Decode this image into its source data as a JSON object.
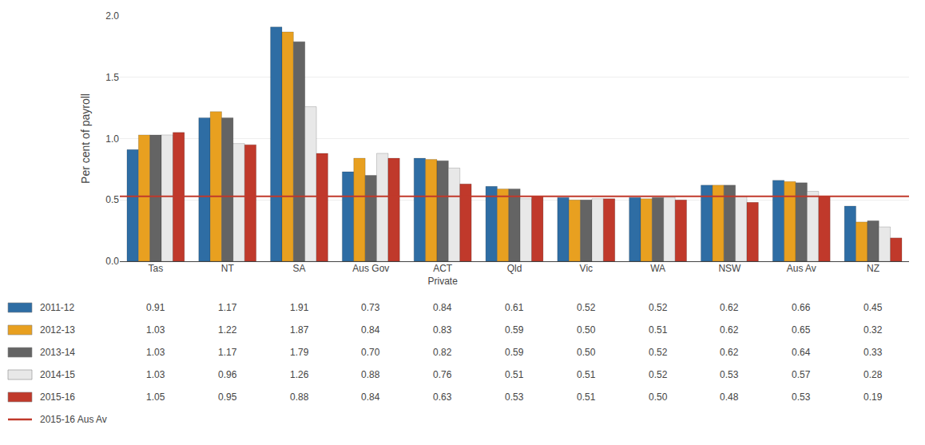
{
  "chart_data": {
    "type": "bar",
    "categories": [
      "Tas",
      "NT",
      "SA",
      "Aus Gov",
      "ACT\nPrivate",
      "Qld",
      "Vic",
      "WA",
      "NSW",
      "Aus Av",
      "NZ"
    ],
    "series": [
      {
        "name": "2011-12",
        "color": "#2E6DA4",
        "values": [
          0.91,
          1.17,
          1.91,
          0.73,
          0.84,
          0.61,
          0.52,
          0.52,
          0.62,
          0.66,
          0.45
        ],
        "value_labels": [
          "0.91",
          "1.17",
          "1.91",
          "0.73",
          "0.84",
          "0.61",
          "0.52",
          "0.52",
          "0.62",
          "0.66",
          "0.45"
        ]
      },
      {
        "name": "2012-13",
        "color": "#E8A020",
        "values": [
          1.03,
          1.22,
          1.87,
          0.84,
          0.83,
          0.59,
          0.5,
          0.51,
          0.62,
          0.65,
          0.32
        ],
        "value_labels": [
          "1.03",
          "1.22",
          "1.87",
          "0.84",
          "0.83",
          "0.59",
          "0.50",
          "0.51",
          "0.62",
          "0.65",
          "0.32"
        ]
      },
      {
        "name": "2013-14",
        "color": "#646464",
        "values": [
          1.03,
          1.17,
          1.79,
          0.7,
          0.82,
          0.59,
          0.5,
          0.52,
          0.62,
          0.64,
          0.33
        ],
        "value_labels": [
          "1.03",
          "1.17",
          "1.79",
          "0.70",
          "0.82",
          "0.59",
          "0.50",
          "0.52",
          "0.62",
          "0.64",
          "0.33"
        ]
      },
      {
        "name": "2014-15",
        "color": "#E8E8E8",
        "values": [
          1.03,
          0.96,
          1.26,
          0.88,
          0.76,
          0.51,
          0.51,
          0.52,
          0.53,
          0.57,
          0.28
        ],
        "value_labels": [
          "1.03",
          "0.96",
          "1.26",
          "0.88",
          "0.76",
          "0.51",
          "0.51",
          "0.52",
          "0.53",
          "0.57",
          "0.28"
        ]
      },
      {
        "name": "2015-16",
        "color": "#C0392B",
        "values": [
          1.05,
          0.95,
          0.88,
          0.84,
          0.63,
          0.53,
          0.51,
          0.5,
          0.48,
          0.53,
          0.19
        ],
        "value_labels": [
          "1.05",
          "0.95",
          "0.88",
          "0.84",
          "0.63",
          "0.53",
          "0.51",
          "0.50",
          "0.48",
          "0.53",
          "0.19"
        ]
      }
    ],
    "reference_lines": [
      {
        "name": "2015-16 Aus Av",
        "value": 0.53,
        "color": "#C0392B"
      }
    ],
    "ylabel": "Per cent of payroll",
    "ylim": [
      0.0,
      2.0
    ],
    "yticks": [
      {
        "value": 0.0,
        "label": "0.0"
      },
      {
        "value": 0.5,
        "label": "0.5"
      },
      {
        "value": 1.0,
        "label": "1.0"
      },
      {
        "value": 1.5,
        "label": "1.5"
      },
      {
        "value": 2.0,
        "label": "2.0"
      }
    ],
    "grid": true
  }
}
